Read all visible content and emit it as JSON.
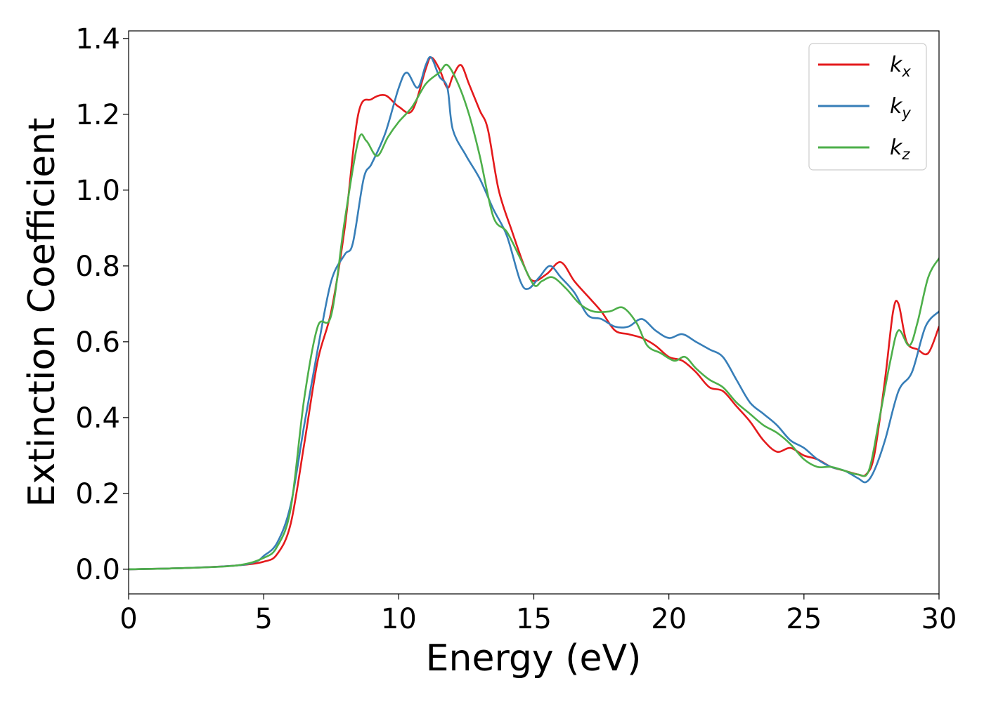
{
  "chart_data": {
    "type": "line",
    "xlabel": "Energy (eV)",
    "ylabel": "Extinction Coefficient",
    "xlim": [
      0,
      30
    ],
    "ylim": [
      -0.065,
      1.42
    ],
    "xticks": [
      0,
      5,
      10,
      15,
      20,
      25,
      30
    ],
    "xtick_labels": [
      "0",
      "5",
      "10",
      "15",
      "20",
      "25",
      "30"
    ],
    "yticks": [
      0.0,
      0.2,
      0.4,
      0.6,
      0.8,
      1.0,
      1.2,
      1.4
    ],
    "ytick_labels": [
      "0.0",
      "0.2",
      "0.4",
      "0.6",
      "0.8",
      "1.0",
      "1.2",
      "1.4"
    ],
    "grid": false,
    "legend_position": "top-right",
    "series": [
      {
        "name": "k_x",
        "label_main": "k",
        "label_sub": "x",
        "color": "#e41a1c",
        "points": [
          [
            0,
            0
          ],
          [
            2,
            0.003
          ],
          [
            4,
            0.01
          ],
          [
            5,
            0.02
          ],
          [
            5.5,
            0.04
          ],
          [
            6,
            0.12
          ],
          [
            6.5,
            0.33
          ],
          [
            7,
            0.55
          ],
          [
            7.5,
            0.68
          ],
          [
            8,
            0.9
          ],
          [
            8.5,
            1.2
          ],
          [
            9,
            1.24
          ],
          [
            9.5,
            1.25
          ],
          [
            10,
            1.22
          ],
          [
            10.5,
            1.21
          ],
          [
            11,
            1.32
          ],
          [
            11.2,
            1.35
          ],
          [
            11.5,
            1.32
          ],
          [
            11.8,
            1.27
          ],
          [
            12,
            1.3
          ],
          [
            12.3,
            1.33
          ],
          [
            12.6,
            1.28
          ],
          [
            13,
            1.21
          ],
          [
            13.3,
            1.16
          ],
          [
            13.7,
            1.0
          ],
          [
            14.2,
            0.89
          ],
          [
            14.7,
            0.79
          ],
          [
            15,
            0.76
          ],
          [
            15.5,
            0.78
          ],
          [
            16,
            0.81
          ],
          [
            16.5,
            0.76
          ],
          [
            17,
            0.72
          ],
          [
            17.5,
            0.68
          ],
          [
            18,
            0.63
          ],
          [
            18.5,
            0.62
          ],
          [
            19,
            0.61
          ],
          [
            19.5,
            0.59
          ],
          [
            20,
            0.56
          ],
          [
            20.5,
            0.55
          ],
          [
            21,
            0.52
          ],
          [
            21.5,
            0.48
          ],
          [
            22,
            0.47
          ],
          [
            22.5,
            0.43
          ],
          [
            23,
            0.39
          ],
          [
            23.5,
            0.34
          ],
          [
            24,
            0.31
          ],
          [
            24.5,
            0.32
          ],
          [
            25,
            0.3
          ],
          [
            25.5,
            0.29
          ],
          [
            26,
            0.27
          ],
          [
            26.5,
            0.26
          ],
          [
            27,
            0.25
          ],
          [
            27.3,
            0.25
          ],
          [
            27.6,
            0.3
          ],
          [
            28,
            0.5
          ],
          [
            28.3,
            0.68
          ],
          [
            28.5,
            0.7
          ],
          [
            28.8,
            0.6
          ],
          [
            29.2,
            0.58
          ],
          [
            29.6,
            0.57
          ],
          [
            30,
            0.64
          ]
        ]
      },
      {
        "name": "k_y",
        "label_main": "k",
        "label_sub": "y",
        "color": "#377eb8",
        "points": [
          [
            0,
            0
          ],
          [
            2,
            0.003
          ],
          [
            4,
            0.01
          ],
          [
            4.7,
            0.02
          ],
          [
            5,
            0.035
          ],
          [
            5.5,
            0.07
          ],
          [
            6,
            0.17
          ],
          [
            6.5,
            0.38
          ],
          [
            7,
            0.58
          ],
          [
            7.5,
            0.76
          ],
          [
            8,
            0.83
          ],
          [
            8.3,
            0.86
          ],
          [
            8.7,
            1.03
          ],
          [
            9,
            1.07
          ],
          [
            9.5,
            1.15
          ],
          [
            10,
            1.27
          ],
          [
            10.3,
            1.31
          ],
          [
            10.7,
            1.27
          ],
          [
            11,
            1.33
          ],
          [
            11.2,
            1.35
          ],
          [
            11.5,
            1.3
          ],
          [
            11.8,
            1.27
          ],
          [
            12,
            1.16
          ],
          [
            12.5,
            1.09
          ],
          [
            13,
            1.03
          ],
          [
            13.5,
            0.95
          ],
          [
            14,
            0.88
          ],
          [
            14.5,
            0.76
          ],
          [
            14.8,
            0.74
          ],
          [
            15.2,
            0.77
          ],
          [
            15.6,
            0.8
          ],
          [
            16,
            0.77
          ],
          [
            16.5,
            0.73
          ],
          [
            17,
            0.67
          ],
          [
            17.5,
            0.66
          ],
          [
            18,
            0.64
          ],
          [
            18.5,
            0.64
          ],
          [
            19,
            0.66
          ],
          [
            19.5,
            0.63
          ],
          [
            20,
            0.61
          ],
          [
            20.5,
            0.62
          ],
          [
            21,
            0.6
          ],
          [
            21.5,
            0.58
          ],
          [
            22,
            0.56
          ],
          [
            22.5,
            0.5
          ],
          [
            23,
            0.44
          ],
          [
            23.5,
            0.41
          ],
          [
            24,
            0.38
          ],
          [
            24.5,
            0.34
          ],
          [
            25,
            0.32
          ],
          [
            25.5,
            0.29
          ],
          [
            26,
            0.27
          ],
          [
            26.5,
            0.26
          ],
          [
            27,
            0.24
          ],
          [
            27.3,
            0.23
          ],
          [
            27.6,
            0.26
          ],
          [
            28,
            0.34
          ],
          [
            28.5,
            0.47
          ],
          [
            29,
            0.52
          ],
          [
            29.5,
            0.64
          ],
          [
            30,
            0.68
          ]
        ]
      },
      {
        "name": "k_z",
        "label_main": "k",
        "label_sub": "z",
        "color": "#4daf4a",
        "points": [
          [
            0,
            0
          ],
          [
            2,
            0.003
          ],
          [
            4,
            0.01
          ],
          [
            5,
            0.03
          ],
          [
            5.5,
            0.06
          ],
          [
            6,
            0.16
          ],
          [
            6.5,
            0.45
          ],
          [
            7,
            0.64
          ],
          [
            7.5,
            0.67
          ],
          [
            8,
            0.92
          ],
          [
            8.5,
            1.13
          ],
          [
            8.8,
            1.13
          ],
          [
            9.2,
            1.09
          ],
          [
            9.6,
            1.14
          ],
          [
            10,
            1.18
          ],
          [
            10.5,
            1.22
          ],
          [
            11,
            1.28
          ],
          [
            11.5,
            1.31
          ],
          [
            11.8,
            1.33
          ],
          [
            12.2,
            1.28
          ],
          [
            12.6,
            1.2
          ],
          [
            13,
            1.09
          ],
          [
            13.5,
            0.93
          ],
          [
            14,
            0.89
          ],
          [
            14.5,
            0.82
          ],
          [
            15,
            0.75
          ],
          [
            15.3,
            0.76
          ],
          [
            15.7,
            0.77
          ],
          [
            16.2,
            0.74
          ],
          [
            16.7,
            0.7
          ],
          [
            17.2,
            0.68
          ],
          [
            17.8,
            0.68
          ],
          [
            18.3,
            0.69
          ],
          [
            18.8,
            0.65
          ],
          [
            19.2,
            0.59
          ],
          [
            19.7,
            0.57
          ],
          [
            20.2,
            0.55
          ],
          [
            20.6,
            0.56
          ],
          [
            21,
            0.53
          ],
          [
            21.5,
            0.5
          ],
          [
            22,
            0.48
          ],
          [
            22.5,
            0.44
          ],
          [
            23,
            0.41
          ],
          [
            23.5,
            0.38
          ],
          [
            24,
            0.36
          ],
          [
            24.5,
            0.33
          ],
          [
            25,
            0.29
          ],
          [
            25.5,
            0.27
          ],
          [
            26,
            0.27
          ],
          [
            26.5,
            0.26
          ],
          [
            27,
            0.25
          ],
          [
            27.4,
            0.26
          ],
          [
            27.8,
            0.4
          ],
          [
            28.2,
            0.55
          ],
          [
            28.5,
            0.63
          ],
          [
            28.9,
            0.59
          ],
          [
            29.2,
            0.65
          ],
          [
            29.6,
            0.77
          ],
          [
            30,
            0.82
          ]
        ]
      }
    ]
  }
}
